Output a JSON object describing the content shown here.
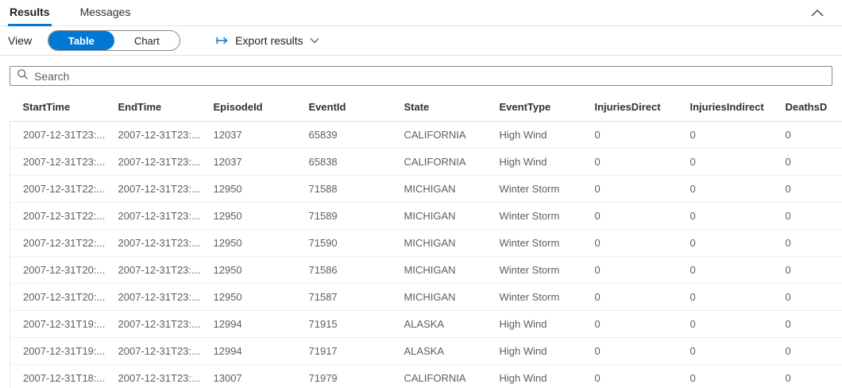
{
  "colors": {
    "accent": "#0078d4",
    "cell_text": "#605e5c",
    "header_text": "#323130"
  },
  "tabs": [
    {
      "label": "Results",
      "active": true
    },
    {
      "label": "Messages",
      "active": false
    }
  ],
  "toolbar": {
    "view_label": "View",
    "toggle_options": [
      "Table",
      "Chart"
    ],
    "toggle_selected": "Table",
    "export_label": "Export results",
    "icons": [
      "export-icon",
      "chevron-down-icon"
    ]
  },
  "panel": {
    "collapse_icon": "chevron-up-icon"
  },
  "search": {
    "placeholder": "Search",
    "value": "",
    "icon": "search-icon"
  },
  "table": {
    "columns": [
      "StartTime",
      "EndTime",
      "EpisodeId",
      "EventId",
      "State",
      "EventType",
      "InjuriesDirect",
      "InjuriesIndirect",
      "DeathsD"
    ],
    "rows": [
      [
        "2007-12-31T23:...",
        "2007-12-31T23:...",
        "12037",
        "65839",
        "CALIFORNIA",
        "High Wind",
        "0",
        "0",
        "0"
      ],
      [
        "2007-12-31T23:...",
        "2007-12-31T23:...",
        "12037",
        "65838",
        "CALIFORNIA",
        "High Wind",
        "0",
        "0",
        "0"
      ],
      [
        "2007-12-31T22:...",
        "2007-12-31T23:...",
        "12950",
        "71588",
        "MICHIGAN",
        "Winter Storm",
        "0",
        "0",
        "0"
      ],
      [
        "2007-12-31T22:...",
        "2007-12-31T23:...",
        "12950",
        "71589",
        "MICHIGAN",
        "Winter Storm",
        "0",
        "0",
        "0"
      ],
      [
        "2007-12-31T22:...",
        "2007-12-31T23:...",
        "12950",
        "71590",
        "MICHIGAN",
        "Winter Storm",
        "0",
        "0",
        "0"
      ],
      [
        "2007-12-31T20:...",
        "2007-12-31T23:...",
        "12950",
        "71586",
        "MICHIGAN",
        "Winter Storm",
        "0",
        "0",
        "0"
      ],
      [
        "2007-12-31T20:...",
        "2007-12-31T23:...",
        "12950",
        "71587",
        "MICHIGAN",
        "Winter Storm",
        "0",
        "0",
        "0"
      ],
      [
        "2007-12-31T19:...",
        "2007-12-31T23:...",
        "12994",
        "71915",
        "ALASKA",
        "High Wind",
        "0",
        "0",
        "0"
      ],
      [
        "2007-12-31T19:...",
        "2007-12-31T23:...",
        "12994",
        "71917",
        "ALASKA",
        "High Wind",
        "0",
        "0",
        "0"
      ],
      [
        "2007-12-31T18:...",
        "2007-12-31T23:...",
        "13007",
        "71979",
        "CALIFORNIA",
        "High Wind",
        "0",
        "0",
        "0"
      ]
    ]
  }
}
